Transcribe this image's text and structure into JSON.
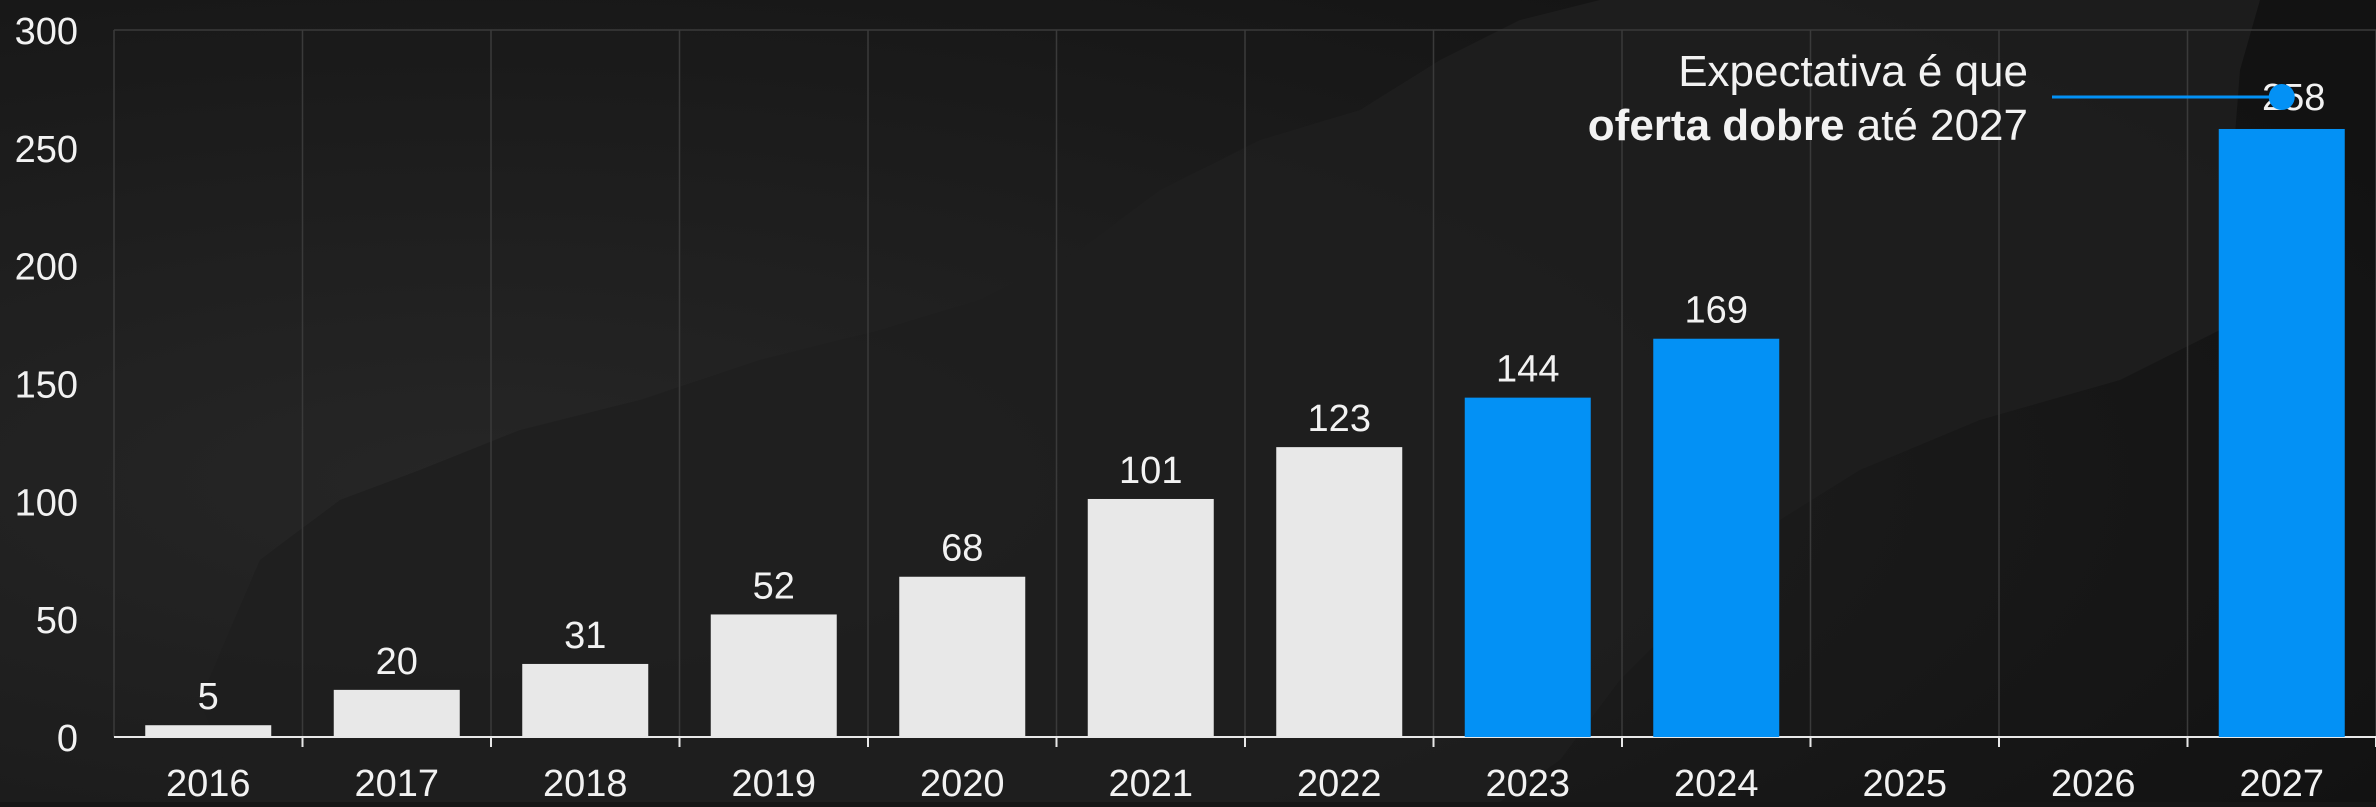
{
  "chart_data": {
    "type": "bar",
    "categories": [
      "2016",
      "2017",
      "2018",
      "2019",
      "2020",
      "2021",
      "2022",
      "2023",
      "2024",
      "2025",
      "2026",
      "2027"
    ],
    "values": [
      5,
      20,
      31,
      52,
      68,
      101,
      123,
      144,
      169,
      null,
      null,
      258
    ],
    "data_labels": [
      "5",
      "20",
      "31",
      "52",
      "68",
      "101",
      "123",
      "144",
      "169",
      "",
      "",
      "258"
    ],
    "series_kind": [
      "actual",
      "actual",
      "actual",
      "actual",
      "actual",
      "actual",
      "actual",
      "projected",
      "projected",
      "",
      "",
      "projected"
    ],
    "ylim": [
      0,
      300
    ],
    "yticks": [
      "0",
      "50",
      "100",
      "150",
      "200",
      "250",
      "300"
    ],
    "grid": "vertical",
    "annotation": {
      "line1": "Expectativa é que",
      "line2_bold": "oferta dobre",
      "line2_rest": " até 2027"
    },
    "colors": {
      "actual": "#e8e8e8",
      "projected": "#0391f5",
      "text": "#f2f2f2",
      "grid": "#3a3a3a",
      "background": "#161616"
    }
  }
}
